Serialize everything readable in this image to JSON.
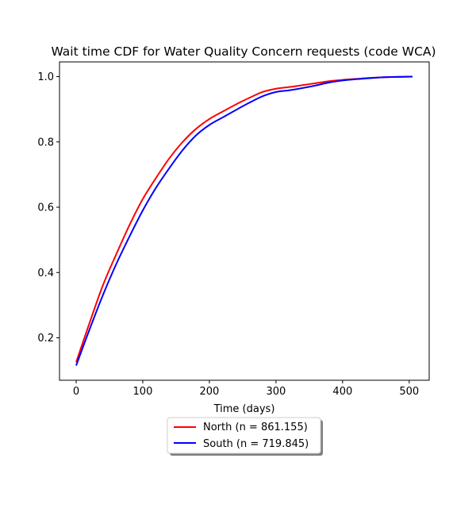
{
  "chart_data": {
    "type": "line",
    "title": "Wait time CDF for Water Quality Concern  requests (code WCA)",
    "xlabel": "Time (days)",
    "ylabel": "",
    "xlim": [
      -25,
      530
    ],
    "ylim": [
      0.07,
      1.045
    ],
    "xticks": [
      0,
      100,
      200,
      300,
      400,
      500
    ],
    "yticks": [
      0.2,
      0.4,
      0.6,
      0.8,
      1.0
    ],
    "xtick_labels": [
      "0",
      "100",
      "200",
      "300",
      "400",
      "500"
    ],
    "ytick_labels": [
      "0.2",
      "0.4",
      "0.6",
      "0.8",
      "1.0"
    ],
    "grid": false,
    "legend_position": "below-center",
    "series": [
      {
        "name": "North (n = 861.155)",
        "color": "#ff0000",
        "x": [
          0,
          20,
          40,
          60,
          80,
          100,
          120,
          140,
          160,
          180,
          200,
          220,
          240,
          260,
          280,
          300,
          320,
          340,
          360,
          380,
          400,
          420,
          440,
          460,
          480,
          505
        ],
        "y": [
          0.125,
          0.245,
          0.36,
          0.455,
          0.545,
          0.625,
          0.69,
          0.75,
          0.8,
          0.84,
          0.87,
          0.893,
          0.915,
          0.935,
          0.953,
          0.963,
          0.968,
          0.974,
          0.98,
          0.986,
          0.99,
          0.993,
          0.996,
          0.998,
          0.999,
          1.0
        ]
      },
      {
        "name": "South (n = 719.845)",
        "color": "#0000ff",
        "x": [
          0,
          20,
          40,
          60,
          80,
          100,
          120,
          140,
          160,
          180,
          200,
          220,
          240,
          260,
          280,
          300,
          320,
          340,
          360,
          380,
          400,
          420,
          440,
          460,
          480,
          505
        ],
        "y": [
          0.115,
          0.225,
          0.33,
          0.425,
          0.51,
          0.59,
          0.66,
          0.72,
          0.775,
          0.82,
          0.852,
          0.875,
          0.898,
          0.92,
          0.94,
          0.953,
          0.958,
          0.965,
          0.973,
          0.982,
          0.988,
          0.992,
          0.995,
          0.998,
          0.999,
          1.0
        ]
      }
    ]
  }
}
